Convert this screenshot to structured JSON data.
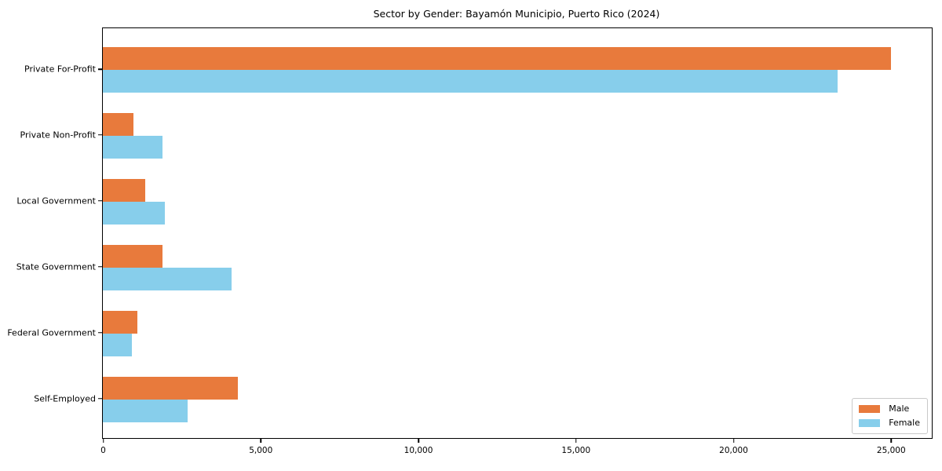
{
  "chart_data": {
    "type": "bar",
    "orientation": "horizontal",
    "title": "Sector by Gender: Bayamón Municipio, Puerto Rico (2024)",
    "categories": [
      "Private For-Profit",
      "Private Non-Profit",
      "Local Government",
      "State Government",
      "Federal Government",
      "Self-Employed"
    ],
    "series": [
      {
        "name": "Male",
        "color": "#E87A3C",
        "values": [
          25000,
          960,
          1350,
          1890,
          1100,
          4290
        ]
      },
      {
        "name": "Female",
        "color": "#87CEEB",
        "values": [
          23300,
          1890,
          1970,
          4090,
          920,
          2700
        ]
      }
    ],
    "xlabel": "",
    "ylabel": "",
    "xlim": [
      0,
      26300
    ],
    "xticks": [
      0,
      5000,
      10000,
      15000,
      20000,
      25000
    ],
    "xtick_labels": [
      "0",
      "5,000",
      "10,000",
      "15,000",
      "20,000",
      "25,000"
    ],
    "grid": "off",
    "legend": {
      "position": "lower right",
      "entries": [
        "Male",
        "Female"
      ]
    }
  }
}
